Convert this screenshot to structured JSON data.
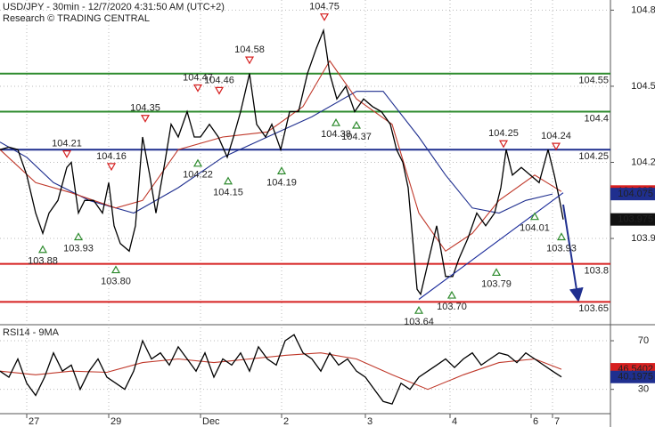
{
  "chart_data": [
    {
      "type": "line",
      "title": "USD/JPY - 30min - 12/7/2020 4:31:50 AM (UTC+2)",
      "subtitle": "Research © TRADING CENTRAL",
      "xlim": [
        0,
        342.5
      ],
      "xticks": [
        {
          "value": 15,
          "label": "27"
        },
        {
          "value": 61,
          "label": "29"
        },
        {
          "value": 112.5,
          "label": "Dec"
        },
        {
          "value": 158,
          "label": "2"
        },
        {
          "value": 205,
          "label": "3"
        },
        {
          "value": 252.5,
          "label": "4"
        },
        {
          "value": 298,
          "label": "6"
        },
        {
          "value": 310,
          "label": "7"
        }
      ],
      "ylim": [
        103.56,
        104.84
      ],
      "yticks": [
        104.8,
        104.5,
        104.2,
        103.9
      ],
      "grid": true,
      "series": [
        {
          "color": "#1f2f8f",
          "x": [
            0,
            15,
            30,
            50,
            75,
            100,
            125,
            150,
            175,
            200,
            215,
            235,
            250,
            265,
            280,
            295,
            310
          ],
          "values": [
            104.28,
            104.22,
            104.12,
            104.05,
            104.0,
            104.1,
            104.22,
            104.3,
            104.38,
            104.48,
            104.48,
            104.3,
            104.15,
            104.02,
            104.0,
            104.05,
            104.075
          ]
        },
        {
          "color": "#c0392b",
          "x": [
            0,
            20,
            40,
            65,
            80,
            100,
            125,
            150,
            170,
            185,
            200,
            220,
            235,
            250,
            265,
            280,
            300,
            315
          ],
          "values": [
            104.25,
            104.12,
            104.08,
            104.02,
            104.05,
            104.25,
            104.3,
            104.32,
            104.42,
            104.6,
            104.45,
            104.35,
            104.0,
            103.85,
            103.92,
            104.05,
            104.15,
            104.085
          ]
        },
        {
          "color": "#000000",
          "x": [
            0,
            5,
            10,
            15,
            20,
            24,
            27.5,
            32.5,
            37.5,
            40,
            44,
            47.5,
            52.5,
            57.5,
            61,
            64,
            67.5,
            72.5,
            76,
            80,
            84,
            87.5,
            92.5,
            96,
            100,
            105,
            109,
            112.5,
            117.5,
            122.5,
            127.5,
            131,
            135,
            140,
            144,
            149,
            152.5,
            157.5,
            162.5,
            167.5,
            172.5,
            177.5,
            181.5,
            185,
            189,
            194,
            199,
            204,
            209,
            214,
            219,
            222.5,
            226,
            229,
            231.5,
            234,
            236,
            240,
            245,
            250,
            254,
            257.5,
            262.5,
            267.5,
            272.5,
            277.5,
            281,
            284,
            287.5,
            292.5,
            297.5,
            302.5,
            307.5,
            311,
            314,
            316
          ],
          "values": [
            104.25,
            104.26,
            104.25,
            104.15,
            104.0,
            103.92,
            104.0,
            104.05,
            104.18,
            104.2,
            104.0,
            104.05,
            104.05,
            104.0,
            104.12,
            103.95,
            103.88,
            103.85,
            103.95,
            104.3,
            104.15,
            104.0,
            104.2,
            104.35,
            104.3,
            104.4,
            104.3,
            104.3,
            104.35,
            104.3,
            104.22,
            104.3,
            104.4,
            104.55,
            104.35,
            104.3,
            104.35,
            104.25,
            104.4,
            104.4,
            104.55,
            104.65,
            104.72,
            104.55,
            104.45,
            104.5,
            104.4,
            104.45,
            104.42,
            104.4,
            104.35,
            104.25,
            104.2,
            104.1,
            103.9,
            103.7,
            103.68,
            103.8,
            103.95,
            103.75,
            103.75,
            103.82,
            103.9,
            104.0,
            103.95,
            104.0,
            104.1,
            104.25,
            104.15,
            104.18,
            104.15,
            104.12,
            104.25,
            104.15,
            104.05,
            103.975
          ]
        },
        {
          "color": "#1a2a9a",
          "x": [
            235,
            316
          ],
          "values": [
            103.66,
            104.08
          ]
        }
      ],
      "levels": [
        {
          "value": 104.55,
          "color": "#2e8b2e"
        },
        {
          "value": 104.4,
          "color": "#2e8b2e"
        },
        {
          "value": 104.25,
          "color": "#1f2f8f"
        },
        {
          "value": 103.8,
          "color": "#d62020"
        },
        {
          "value": 103.65,
          "color": "#d62020"
        }
      ],
      "annotations": [
        {
          "kind": "high",
          "x": 37.5,
          "value": 104.21,
          "label": "104.21"
        },
        {
          "kind": "high",
          "x": 62.5,
          "value": 104.16,
          "label": "104.16"
        },
        {
          "kind": "high",
          "x": 81.5,
          "value": 104.35,
          "label": "104.35"
        },
        {
          "kind": "high",
          "x": 111,
          "value": 104.47,
          "label": "104.47"
        },
        {
          "kind": "high",
          "x": 123,
          "value": 104.46,
          "label": "104.46"
        },
        {
          "kind": "high",
          "x": 140,
          "value": 104.58,
          "label": "104.58"
        },
        {
          "kind": "high",
          "x": 182,
          "value": 104.75,
          "label": "104.75"
        },
        {
          "kind": "high",
          "x": 282.5,
          "value": 104.25,
          "label": "104.25"
        },
        {
          "kind": "high",
          "x": 312,
          "value": 104.24,
          "label": "104.24"
        },
        {
          "kind": "low",
          "x": 24,
          "value": 103.88,
          "label": "103.88"
        },
        {
          "kind": "low",
          "x": 44,
          "value": 103.93,
          "label": "103.93"
        },
        {
          "kind": "low",
          "x": 65,
          "value": 103.8,
          "label": "103.80"
        },
        {
          "kind": "low",
          "x": 111,
          "value": 104.22,
          "label": "104.22"
        },
        {
          "kind": "low",
          "x": 128,
          "value": 104.15,
          "label": "104.15"
        },
        {
          "kind": "low",
          "x": 158,
          "value": 104.19,
          "label": "104.19"
        },
        {
          "kind": "low",
          "x": 188.5,
          "value": 104.38,
          "label": "104.38"
        },
        {
          "kind": "low",
          "x": 200,
          "value": 104.37,
          "label": "104.37"
        },
        {
          "kind": "low",
          "x": 235,
          "value": 103.64,
          "label": "103.64"
        },
        {
          "kind": "low",
          "x": 253.5,
          "value": 103.7,
          "label": "103.70"
        },
        {
          "kind": "low",
          "x": 278.5,
          "value": 103.79,
          "label": "103.79"
        },
        {
          "kind": "low",
          "x": 300,
          "value": 104.01,
          "label": "104.01"
        },
        {
          "kind": "low",
          "x": 315,
          "value": 103.93,
          "label": "103.93"
        }
      ],
      "price_tags": [
        {
          "value": 104.085,
          "color": "#d62020"
        },
        {
          "value": 104.075,
          "color": "#1f2f8f"
        },
        {
          "value": 103.975,
          "color": "#111111"
        }
      ]
    },
    {
      "type": "line",
      "title": "RSI14 - 9MA",
      "xlim": [
        0,
        342.5
      ],
      "ylim": [
        10,
        81
      ],
      "yticks": [
        70,
        30
      ],
      "grid": true,
      "series": [
        {
          "color": "#c0392b",
          "x": [
            0,
            20,
            40,
            60,
            80,
            100,
            120,
            140,
            160,
            180,
            200,
            220,
            240,
            260,
            280,
            300,
            315
          ],
          "values": [
            45,
            42,
            45,
            44,
            52,
            55,
            52,
            55,
            58,
            60,
            55,
            42,
            30,
            42,
            52,
            55,
            46.5402
          ]
        },
        {
          "color": "#000000",
          "x": [
            0,
            5,
            10,
            15,
            20,
            25,
            30,
            35,
            40,
            45,
            50,
            55,
            60,
            65,
            70,
            75,
            80,
            85,
            90,
            95,
            100,
            105,
            110,
            115,
            120,
            125,
            130,
            135,
            140,
            145,
            150,
            155,
            160,
            165,
            170,
            175,
            180,
            185,
            190,
            195,
            200,
            205,
            210,
            215,
            220,
            225,
            230,
            235,
            240,
            245,
            250,
            255,
            260,
            265,
            270,
            275,
            280,
            285,
            290,
            295,
            300,
            305,
            310,
            315
          ],
          "values": [
            45,
            40,
            55,
            35,
            25,
            40,
            60,
            45,
            50,
            30,
            45,
            55,
            40,
            35,
            30,
            45,
            70,
            55,
            60,
            50,
            65,
            55,
            45,
            60,
            40,
            55,
            50,
            60,
            45,
            65,
            55,
            50,
            70,
            75,
            60,
            55,
            45,
            60,
            50,
            55,
            45,
            40,
            30,
            20,
            18,
            35,
            30,
            40,
            45,
            50,
            55,
            48,
            55,
            60,
            50,
            55,
            60,
            58,
            52,
            60,
            55,
            50,
            45,
            40.1975
          ]
        }
      ],
      "value_tags": [
        {
          "value": 46.5402,
          "color": "#d62020"
        },
        {
          "value": 40.1975,
          "color": "#1f2f8f"
        }
      ]
    }
  ]
}
